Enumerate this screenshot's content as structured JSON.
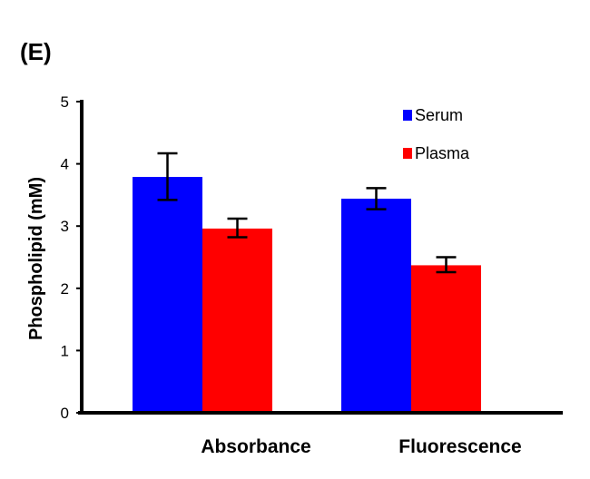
{
  "panel_label": "(E)",
  "chart_data": {
    "type": "bar",
    "title": "",
    "xlabel": "",
    "ylabel": "Phospholipid  (mM)",
    "categories": [
      "Absorbance",
      "Fluorescence"
    ],
    "ylim": [
      0,
      5
    ],
    "yticks": [
      "0",
      "1",
      "2",
      "3",
      "4",
      "5"
    ],
    "grid": false,
    "legend_position": "top-right",
    "series": [
      {
        "name": "Serum",
        "color": "#0000ff",
        "values": [
          3.79,
          3.44
        ],
        "error_low": [
          3.42,
          3.27
        ],
        "error_high": [
          4.17,
          3.61
        ]
      },
      {
        "name": "Plasma",
        "color": "#ff0000",
        "values": [
          2.96,
          2.37
        ],
        "error_low": [
          2.82,
          2.26
        ],
        "error_high": [
          3.12,
          2.5
        ]
      }
    ]
  }
}
